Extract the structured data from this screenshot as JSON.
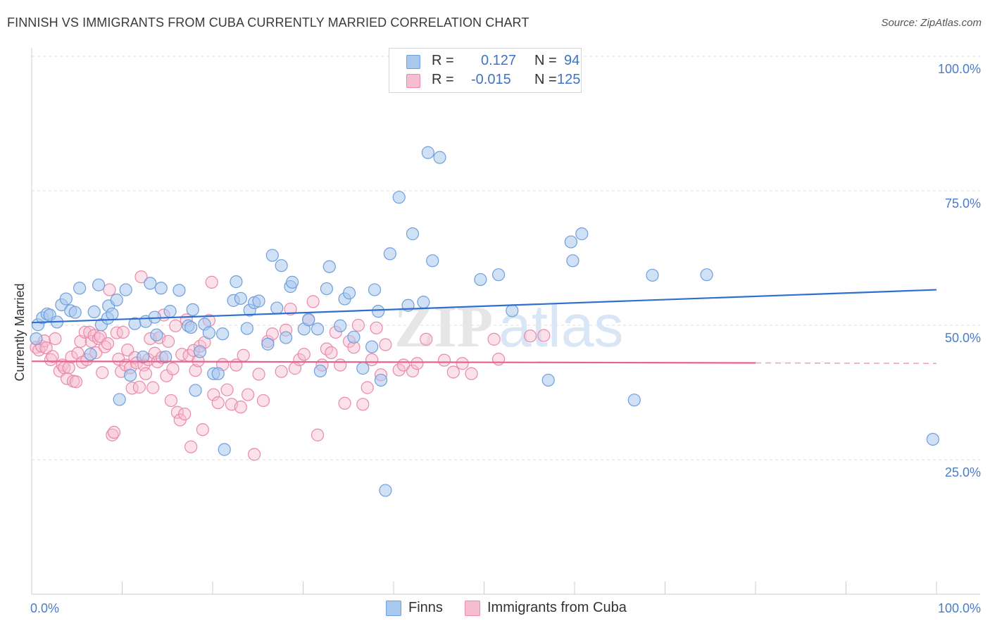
{
  "title": "FINNISH VS IMMIGRANTS FROM CUBA CURRENTLY MARRIED CORRELATION CHART",
  "source": "Source: ZipAtlas.com",
  "watermark": {
    "zip": "ZIP",
    "atlas": "atlas"
  },
  "legend_top": {
    "row1": {
      "r_label": "R =",
      "r_value": "0.127",
      "n_label": "N =",
      "n_value": "94"
    },
    "row2": {
      "r_label": "R =",
      "r_value": "-0.015",
      "n_label": "N =",
      "n_value": "125"
    }
  },
  "legend_bottom": {
    "finns": "Finns",
    "cuba": "Immigrants from Cuba"
  },
  "colors": {
    "finns_fill": "#a9c8ef",
    "finns_stroke": "#6f9fdc",
    "finns_line": "#2f6fcf",
    "cuba_fill": "#f6bcd0",
    "cuba_stroke": "#e98aaa",
    "cuba_line": "#e5638f",
    "grid": "#dddddd",
    "axis": "#cccccc",
    "tick_text": "#4a7cc9"
  },
  "chart_data": {
    "type": "scatter",
    "title": "FINNISH VS IMMIGRANTS FROM CUBA CURRENTLY MARRIED CORRELATION CHART",
    "xlabel": "",
    "ylabel": "Currently Married",
    "xlim": [
      0,
      100
    ],
    "ylim": [
      0,
      105
    ],
    "x_tick_labels": [
      "0.0%",
      "100.0%"
    ],
    "y_ticks": [
      25,
      50,
      75,
      100
    ],
    "y_tick_labels": [
      "25.0%",
      "50.0%",
      "75.0%",
      "100.0%"
    ],
    "grid": true,
    "legend_position": "top-center",
    "series": [
      {
        "name": "Finns",
        "r": 0.127,
        "n": 94,
        "trend": {
          "x": [
            0,
            100
          ],
          "y": [
            50.5,
            56.6
          ]
        },
        "points": [
          [
            0.5,
            47.5
          ],
          [
            0.7,
            50.1
          ],
          [
            1.2,
            51.4
          ],
          [
            1.7,
            52.1
          ],
          [
            2.0,
            51.9
          ],
          [
            2.8,
            50.6
          ],
          [
            3.3,
            53.8
          ],
          [
            3.8,
            54.9
          ],
          [
            4.3,
            52.7
          ],
          [
            4.8,
            52.4
          ],
          [
            5.3,
            56.9
          ],
          [
            6.5,
            44.6
          ],
          [
            6.9,
            52.5
          ],
          [
            7.4,
            57.5
          ],
          [
            7.7,
            50.1
          ],
          [
            8.4,
            51.3
          ],
          [
            8.5,
            53.6
          ],
          [
            8.9,
            52.1
          ],
          [
            9.4,
            54.7
          ],
          [
            9.7,
            36.2
          ],
          [
            10.4,
            56.6
          ],
          [
            10.9,
            40.7
          ],
          [
            11.4,
            50.3
          ],
          [
            12.3,
            44.1
          ],
          [
            12.6,
            50.7
          ],
          [
            13.1,
            57.8
          ],
          [
            13.6,
            51.5
          ],
          [
            13.8,
            48.2
          ],
          [
            14.3,
            56.9
          ],
          [
            14.8,
            44.1
          ],
          [
            15.3,
            52.6
          ],
          [
            16.3,
            56.5
          ],
          [
            17.3,
            49.9
          ],
          [
            17.6,
            49.6
          ],
          [
            17.8,
            52.9
          ],
          [
            18.1,
            37.9
          ],
          [
            18.6,
            45.1
          ],
          [
            19.1,
            50.2
          ],
          [
            19.6,
            48.6
          ],
          [
            20.1,
            41.0
          ],
          [
            20.6,
            41.0
          ],
          [
            21.1,
            48.4
          ],
          [
            21.3,
            26.9
          ],
          [
            22.3,
            54.6
          ],
          [
            22.6,
            58.1
          ],
          [
            23.1,
            55.0
          ],
          [
            23.8,
            49.4
          ],
          [
            24.1,
            52.8
          ],
          [
            24.6,
            54.2
          ],
          [
            25.1,
            54.5
          ],
          [
            26.1,
            46.5
          ],
          [
            26.6,
            63.0
          ],
          [
            27.1,
            53.2
          ],
          [
            27.6,
            61.1
          ],
          [
            28.1,
            47.7
          ],
          [
            28.6,
            57.2
          ],
          [
            28.8,
            58.0
          ],
          [
            30.1,
            49.3
          ],
          [
            30.6,
            51.0
          ],
          [
            31.6,
            49.3
          ],
          [
            31.9,
            41.5
          ],
          [
            32.6,
            56.8
          ],
          [
            32.9,
            60.9
          ],
          [
            34.1,
            49.9
          ],
          [
            34.6,
            54.9
          ],
          [
            35.1,
            56.0
          ],
          [
            35.6,
            47.8
          ],
          [
            36.6,
            42.0
          ],
          [
            37.6,
            46.0
          ],
          [
            37.9,
            56.6
          ],
          [
            38.3,
            52.6
          ],
          [
            38.6,
            39.8
          ],
          [
            39.1,
            19.3
          ],
          [
            39.6,
            63.3
          ],
          [
            40.6,
            73.8
          ],
          [
            41.6,
            53.7
          ],
          [
            42.1,
            67.0
          ],
          [
            43.3,
            54.3
          ],
          [
            43.8,
            82.1
          ],
          [
            44.3,
            62.0
          ],
          [
            45.1,
            81.2
          ],
          [
            49.6,
            58.5
          ],
          [
            51.6,
            59.4
          ],
          [
            53.1,
            52.7
          ],
          [
            57.1,
            39.8
          ],
          [
            59.6,
            65.5
          ],
          [
            59.8,
            62.0
          ],
          [
            60.8,
            67.0
          ],
          [
            66.6,
            36.1
          ],
          [
            68.6,
            59.3
          ],
          [
            74.6,
            59.4
          ],
          [
            99.6,
            28.8
          ]
        ]
      },
      {
        "name": "Immigrants from Cuba",
        "r": -0.015,
        "n": 125,
        "trend": {
          "x": [
            0,
            80
          ],
          "y": [
            43.3,
            43.0
          ],
          "dashed_to": [
            100,
            42.9
          ]
        },
        "points": [
          [
            0.5,
            45.9
          ],
          [
            0.8,
            45.4
          ],
          [
            1.1,
            46.1
          ],
          [
            1.4,
            47.1
          ],
          [
            1.6,
            45.8
          ],
          [
            2.1,
            43.6
          ],
          [
            2.3,
            44.2
          ],
          [
            2.6,
            47.5
          ],
          [
            3.1,
            41.5
          ],
          [
            3.4,
            42.6
          ],
          [
            3.6,
            42.1
          ],
          [
            3.9,
            40.1
          ],
          [
            4.1,
            42.1
          ],
          [
            4.4,
            44.1
          ],
          [
            4.6,
            39.6
          ],
          [
            4.9,
            39.5
          ],
          [
            5.1,
            44.8
          ],
          [
            5.4,
            47.0
          ],
          [
            5.6,
            43.1
          ],
          [
            5.9,
            48.7
          ],
          [
            6.1,
            43.6
          ],
          [
            6.4,
            48.7
          ],
          [
            6.6,
            47.0
          ],
          [
            6.9,
            48.1
          ],
          [
            7.1,
            44.9
          ],
          [
            7.4,
            47.5
          ],
          [
            7.6,
            47.9
          ],
          [
            7.8,
            41.2
          ],
          [
            8.1,
            46.0
          ],
          [
            8.4,
            46.6
          ],
          [
            8.6,
            56.6
          ],
          [
            8.9,
            29.6
          ],
          [
            9.1,
            30.1
          ],
          [
            9.4,
            48.6
          ],
          [
            9.6,
            43.7
          ],
          [
            9.9,
            41.4
          ],
          [
            10.1,
            48.7
          ],
          [
            10.4,
            42.6
          ],
          [
            10.6,
            45.4
          ],
          [
            10.9,
            42.1
          ],
          [
            11.1,
            38.3
          ],
          [
            11.4,
            44.0
          ],
          [
            11.6,
            43.0
          ],
          [
            11.9,
            38.5
          ],
          [
            12.1,
            59.0
          ],
          [
            12.4,
            42.6
          ],
          [
            12.6,
            41.0
          ],
          [
            12.9,
            43.6
          ],
          [
            13.1,
            47.5
          ],
          [
            13.4,
            38.4
          ],
          [
            13.6,
            44.8
          ],
          [
            13.9,
            43.2
          ],
          [
            14.1,
            47.7
          ],
          [
            14.4,
            44.0
          ],
          [
            14.6,
            51.9
          ],
          [
            14.9,
            40.6
          ],
          [
            15.1,
            47.0
          ],
          [
            15.4,
            36.0
          ],
          [
            15.6,
            41.9
          ],
          [
            15.9,
            49.9
          ],
          [
            16.1,
            33.8
          ],
          [
            16.4,
            32.4
          ],
          [
            16.6,
            44.6
          ],
          [
            16.9,
            33.5
          ],
          [
            17.1,
            51.0
          ],
          [
            17.4,
            44.4
          ],
          [
            17.6,
            27.4
          ],
          [
            17.9,
            45.3
          ],
          [
            18.1,
            41.6
          ],
          [
            18.4,
            43.4
          ],
          [
            18.6,
            46.1
          ],
          [
            18.9,
            30.6
          ],
          [
            19.1,
            46.8
          ],
          [
            19.6,
            50.9
          ],
          [
            19.9,
            58.0
          ],
          [
            20.1,
            37.1
          ],
          [
            20.6,
            35.6
          ],
          [
            21.1,
            42.7
          ],
          [
            21.6,
            38.0
          ],
          [
            22.1,
            35.3
          ],
          [
            22.6,
            42.6
          ],
          [
            23.1,
            34.8
          ],
          [
            23.4,
            44.4
          ],
          [
            23.9,
            37.1
          ],
          [
            24.6,
            26.0
          ],
          [
            25.1,
            40.9
          ],
          [
            25.6,
            36.0
          ],
          [
            26.1,
            47.0
          ],
          [
            26.6,
            48.4
          ],
          [
            27.6,
            41.4
          ],
          [
            28.1,
            49.1
          ],
          [
            28.6,
            53.0
          ],
          [
            29.1,
            42.0
          ],
          [
            29.6,
            43.6
          ],
          [
            30.1,
            44.6
          ],
          [
            30.6,
            51.1
          ],
          [
            31.1,
            54.4
          ],
          [
            31.6,
            29.6
          ],
          [
            32.1,
            42.6
          ],
          [
            32.6,
            45.6
          ],
          [
            33.1,
            44.9
          ],
          [
            33.6,
            48.7
          ],
          [
            34.1,
            42.6
          ],
          [
            34.6,
            35.5
          ],
          [
            35.1,
            47.0
          ],
          [
            35.6,
            45.9
          ],
          [
            36.1,
            50.0
          ],
          [
            36.6,
            35.3
          ],
          [
            37.1,
            38.4
          ],
          [
            37.6,
            43.6
          ],
          [
            38.1,
            49.5
          ],
          [
            38.6,
            40.8
          ],
          [
            39.1,
            46.4
          ],
          [
            40.6,
            41.7
          ],
          [
            41.1,
            42.6
          ],
          [
            42.1,
            41.5
          ],
          [
            42.6,
            42.9
          ],
          [
            43.6,
            47.4
          ],
          [
            45.6,
            43.5
          ],
          [
            46.6,
            41.3
          ],
          [
            47.6,
            42.9
          ],
          [
            48.6,
            41.0
          ],
          [
            51.1,
            47.4
          ],
          [
            51.6,
            43.7
          ],
          [
            55.1,
            48.0
          ],
          [
            56.6,
            48.1
          ]
        ]
      }
    ]
  }
}
